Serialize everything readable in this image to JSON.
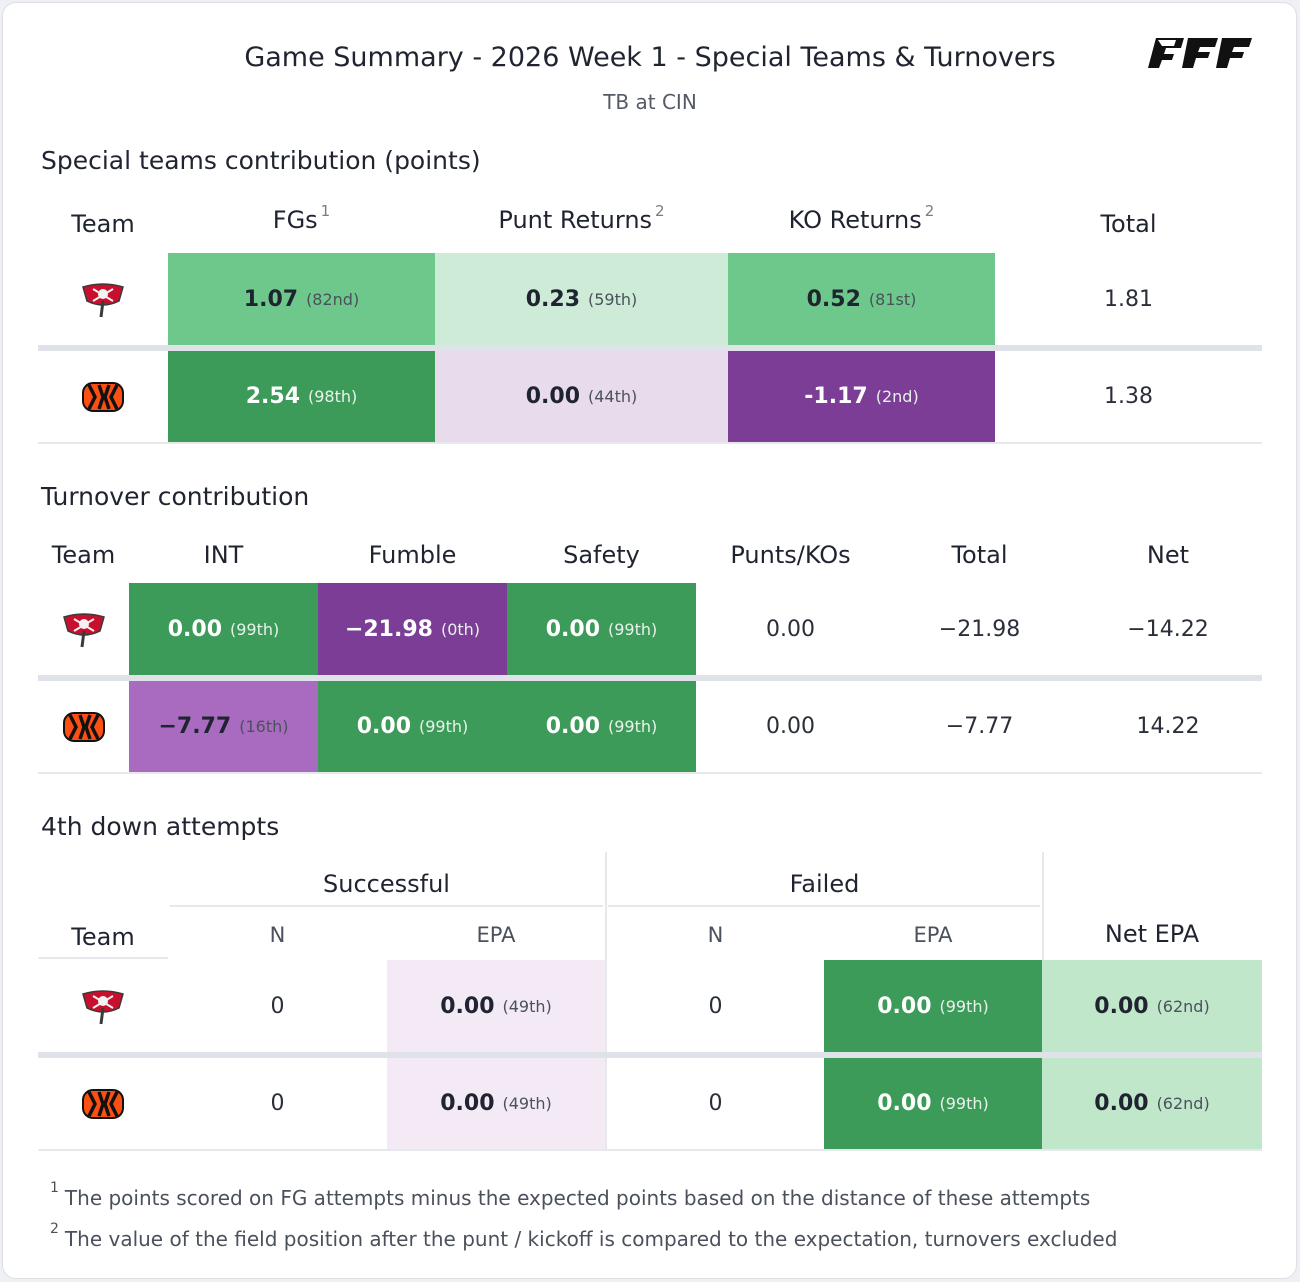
{
  "header": {
    "title": "Game Summary - 2026 Week 1 - Special Teams & Turnovers",
    "subtitle": "TB at CIN",
    "brand": "PFF"
  },
  "colors": {
    "dark_green": "#3d9b59",
    "mid_green": "#6ec88b",
    "light_green": "#cdebd6",
    "pale_green": "#c1e7cb",
    "dark_purple": "#7b3d95",
    "mid_purple": "#a96bc0",
    "light_purple": "#e8dcec",
    "pale_purple": "#f3eaf6"
  },
  "special_teams": {
    "section_title": "Special teams contribution (points)",
    "headers": {
      "team": "Team",
      "fgs": "FGs",
      "fgs_note": "1",
      "punt": "Punt Returns",
      "punt_note": "2",
      "ko": "KO Returns",
      "ko_note": "2",
      "total": "Total"
    },
    "rows": [
      {
        "team": "TB",
        "fg_val": "1.07",
        "fg_pct": "(82nd)",
        "punt_val": "0.23",
        "punt_pct": "(59th)",
        "ko_val": "0.52",
        "ko_pct": "(81st)",
        "total": "1.81"
      },
      {
        "team": "CIN",
        "fg_val": "2.54",
        "fg_pct": "(98th)",
        "punt_val": "0.00",
        "punt_pct": "(44th)",
        "ko_val": "-1.17",
        "ko_pct": "(2nd)",
        "total": "1.38"
      }
    ]
  },
  "turnovers": {
    "section_title": "Turnover contribution",
    "headers": {
      "team": "Team",
      "int": "INT",
      "fumble": "Fumble",
      "safety": "Safety",
      "punts": "Punts/KOs",
      "total": "Total",
      "net": "Net"
    },
    "rows": [
      {
        "team": "TB",
        "int_val": "0.00",
        "int_pct": "(99th)",
        "fum_val": "−21.98",
        "fum_pct": "(0th)",
        "saf_val": "0.00",
        "saf_pct": "(99th)",
        "punts": "0.00",
        "total": "−21.98",
        "net": "−14.22"
      },
      {
        "team": "CIN",
        "int_val": "−7.77",
        "int_pct": "(16th)",
        "fum_val": "0.00",
        "fum_pct": "(99th)",
        "saf_val": "0.00",
        "saf_pct": "(99th)",
        "punts": "0.00",
        "total": "−7.77",
        "net": "14.22"
      }
    ]
  },
  "fourth_down": {
    "section_title": "4th down attempts",
    "headers": {
      "successful": "Successful",
      "failed": "Failed",
      "team": "Team",
      "n": "N",
      "epa": "EPA",
      "net_epa": "Net EPA"
    },
    "rows": [
      {
        "team": "TB",
        "s_n": "0",
        "s_epa": "0.00",
        "s_pct": "(49th)",
        "f_n": "0",
        "f_epa": "0.00",
        "f_pct": "(99th)",
        "net": "0.00",
        "net_pct": "(62nd)"
      },
      {
        "team": "CIN",
        "s_n": "0",
        "s_epa": "0.00",
        "s_pct": "(49th)",
        "f_n": "0",
        "f_epa": "0.00",
        "f_pct": "(99th)",
        "net": "0.00",
        "net_pct": "(62nd)"
      }
    ]
  },
  "footnotes": [
    {
      "mark": "1",
      "text": "The points scored on FG attempts minus the expected points based on the distance of these attempts"
    },
    {
      "mark": "2",
      "text": "The value of the field position after the punt / kickoff is compared to the expectation, turnovers excluded"
    }
  ]
}
